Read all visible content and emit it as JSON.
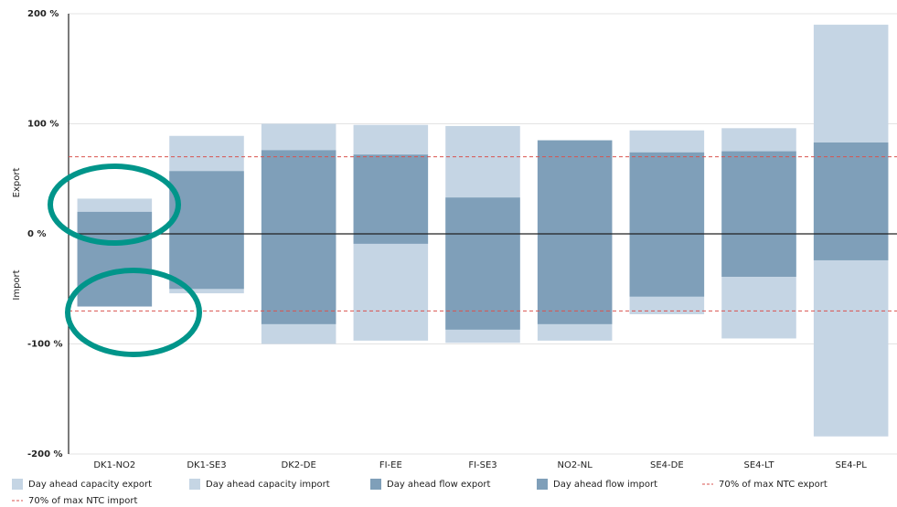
{
  "chart_data": {
    "type": "bar",
    "ylabel_top": "Export",
    "ylabel_bottom": "Import",
    "categories": [
      "DK1-NO2",
      "DK1-SE3",
      "DK2-DE",
      "FI-EE",
      "FI-SE3",
      "NO2-NL",
      "SE4-DE",
      "SE4-LT",
      "SE4-PL"
    ],
    "series": [
      {
        "name": "Day ahead capacity export",
        "color": "#c5d5e4",
        "values": [
          32,
          89,
          100,
          99,
          98,
          85,
          94,
          96,
          190
        ]
      },
      {
        "name": "Day ahead capacity import",
        "color": "#c5d5e4",
        "values": [
          -66,
          -54,
          -100,
          -97,
          -99,
          -97,
          -73,
          -95,
          -184
        ]
      },
      {
        "name": "Day ahead flow export",
        "color": "#7f9fb9",
        "values": [
          20,
          57,
          76,
          72,
          33,
          85,
          74,
          75,
          83
        ]
      },
      {
        "name": "Day ahead flow import",
        "color": "#7f9fb9",
        "values": [
          -66,
          -50,
          -82,
          -9,
          -87,
          -82,
          -57,
          -39,
          -24
        ]
      }
    ],
    "lines": [
      {
        "name": "70% of max NTC export",
        "value": 70,
        "color": "#d9534f"
      },
      {
        "name": "70% of max NTC import",
        "value": -70,
        "color": "#d9534f"
      }
    ],
    "ylim": [
      -200,
      200
    ],
    "yticks": [
      {
        "value": -200,
        "label": "-200 %"
      },
      {
        "value": -100,
        "label": "-100 %"
      },
      {
        "value": 0,
        "label": "0 %"
      },
      {
        "value": 100,
        "label": "100 %"
      },
      {
        "value": 200,
        "label": "200 %"
      }
    ],
    "grid": true
  }
}
